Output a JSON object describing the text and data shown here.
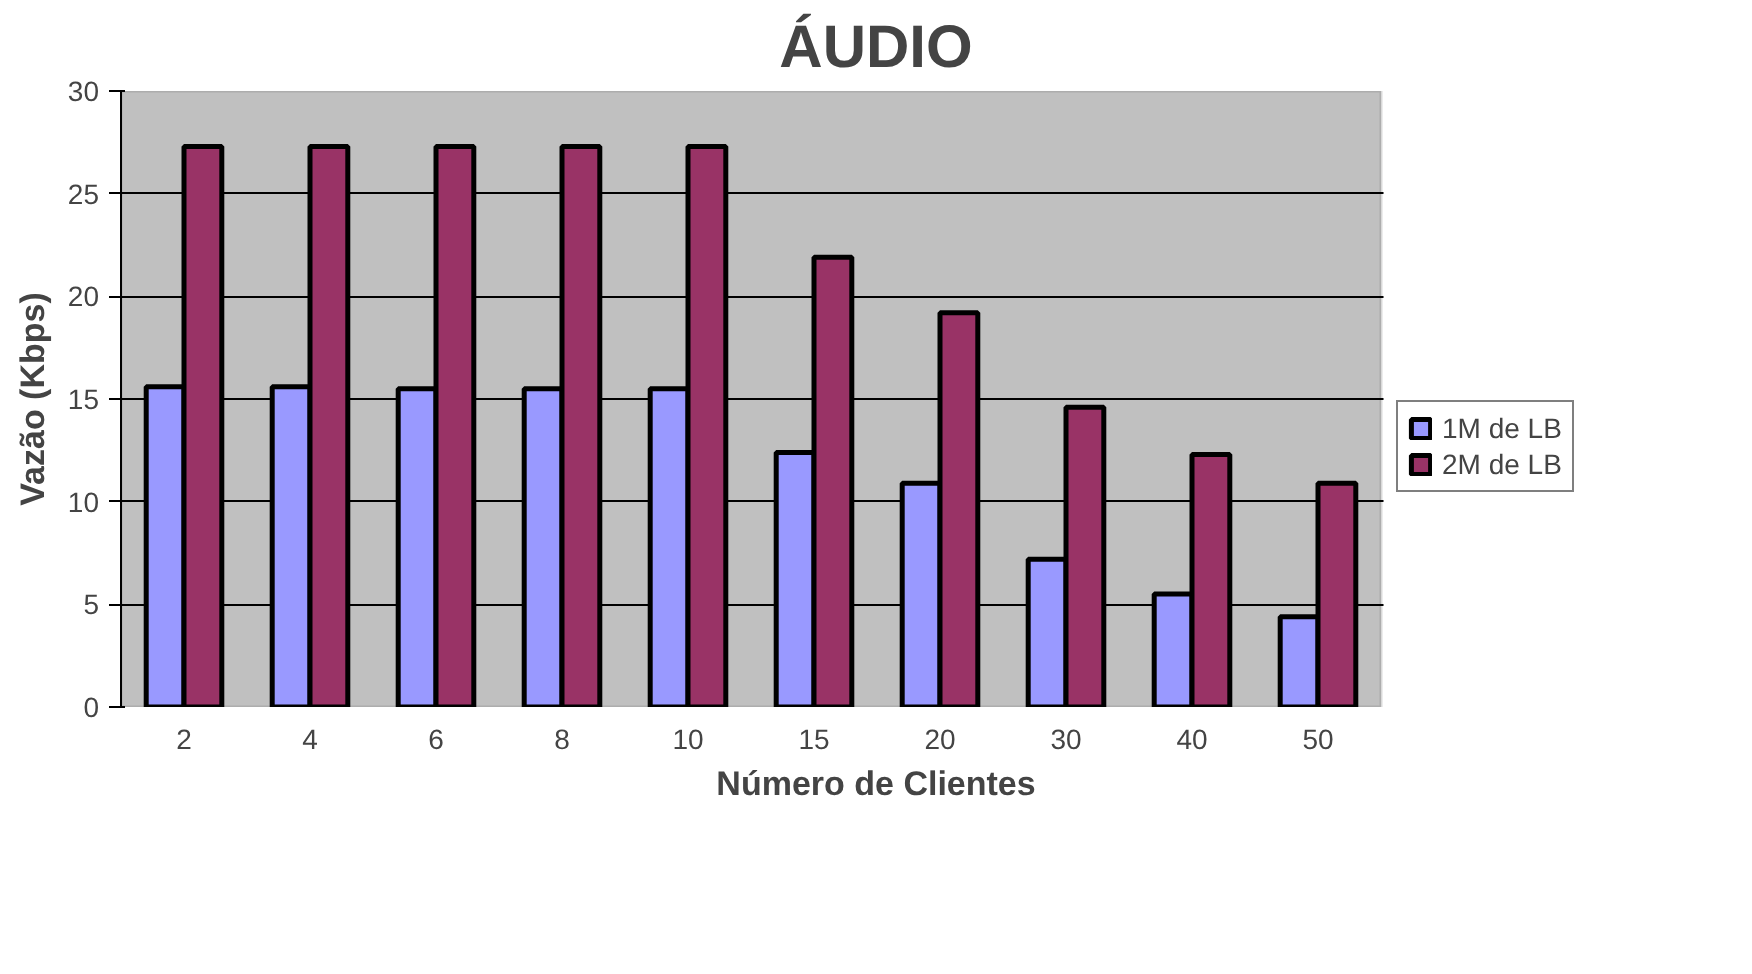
{
  "chart_data": {
    "type": "bar",
    "title": "ÁUDIO",
    "xlabel": "Número de Clientes",
    "ylabel": "Vazão (Kbps)",
    "categories": [
      "2",
      "4",
      "6",
      "8",
      "10",
      "15",
      "20",
      "30",
      "40",
      "50"
    ],
    "series": [
      {
        "name": "1M de LB",
        "color": "#9999ff",
        "values": [
          15.6,
          15.6,
          15.5,
          15.5,
          15.5,
          12.4,
          10.9,
          7.2,
          5.5,
          4.4
        ]
      },
      {
        "name": "2M de LB",
        "color": "#993366",
        "values": [
          27.3,
          27.3,
          27.3,
          27.3,
          27.3,
          21.9,
          19.2,
          14.6,
          12.3,
          10.9
        ]
      }
    ],
    "ylim": [
      0,
      30
    ],
    "yticks": [
      0,
      5,
      10,
      15,
      20,
      25,
      30
    ],
    "grid": "y",
    "legend": "right"
  }
}
